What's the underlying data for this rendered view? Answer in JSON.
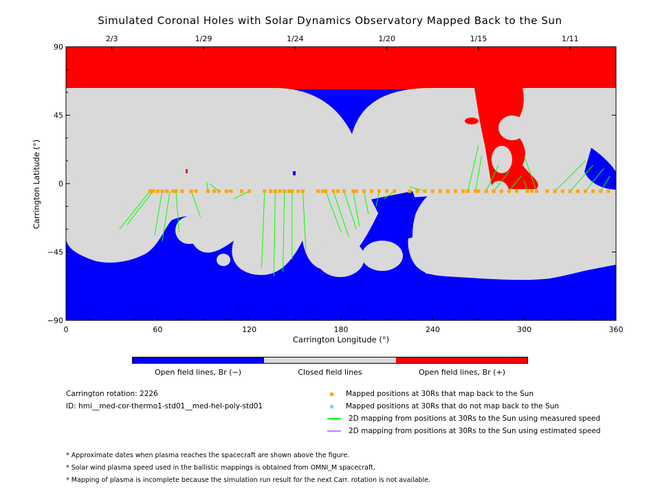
{
  "title": "Simulated Coronal Holes with Solar Dynamics Observatory Mapped Back to the Sun",
  "chart_data": {
    "type": "heatmap",
    "title": "Simulated Coronal Holes with Solar Dynamics Observatory Mapped Back to the Sun",
    "xlabel": "Carrington Longitude (°)",
    "ylabel": "Carrington Latitude (°)",
    "xlim": [
      0,
      360
    ],
    "ylim": [
      -90,
      90
    ],
    "x_ticks": [
      "0",
      "60",
      "120",
      "180",
      "240",
      "300",
      "360"
    ],
    "y_ticks": [
      "90",
      "45",
      "0",
      "−45",
      "−90"
    ],
    "top_axis_ticks": [
      {
        "label": "2/3",
        "lon": 30
      },
      {
        "label": "1/29",
        "lon": 90
      },
      {
        "label": "1/24",
        "lon": 150
      },
      {
        "label": "1/20",
        "lon": 210
      },
      {
        "label": "1/15",
        "lon": 270
      },
      {
        "label": "1/11",
        "lon": 330
      }
    ],
    "colors": {
      "open_negative": "#0000ff",
      "closed": "#d9d9d9",
      "open_positive": "#ff0000",
      "mapped_point": "#ffa500",
      "unmapped_point": "#87cefa",
      "measured_speed_line": "#00ff00",
      "estimated_speed_line": "#c080ff"
    },
    "mapped_positions_lat": -5,
    "mapping_lines": [
      {
        "from_lon": 55,
        "to_lon": 35,
        "to_lat": -30
      },
      {
        "from_lon": 57,
        "to_lon": 40,
        "to_lat": -27
      },
      {
        "from_lon": 63,
        "to_lon": 58,
        "to_lat": -34
      },
      {
        "from_lon": 68,
        "to_lon": 63,
        "to_lat": -38
      },
      {
        "from_lon": 72,
        "to_lon": 74,
        "to_lat": -32
      },
      {
        "from_lon": 82,
        "to_lon": 88,
        "to_lat": -22
      },
      {
        "from_lon": 93,
        "to_lon": 92,
        "to_lat": 1
      },
      {
        "from_lon": 100,
        "to_lon": 94,
        "to_lat": 0
      },
      {
        "from_lon": 108,
        "to_lon": 105,
        "to_lat": -5
      },
      {
        "from_lon": 120,
        "to_lon": 110,
        "to_lat": -10
      },
      {
        "from_lon": 130,
        "to_lon": 128,
        "to_lat": -55
      },
      {
        "from_lon": 137,
        "to_lon": 136,
        "to_lat": -61
      },
      {
        "from_lon": 143,
        "to_lon": 142,
        "to_lat": -58
      },
      {
        "from_lon": 148,
        "to_lon": 148,
        "to_lat": -50
      },
      {
        "from_lon": 155,
        "to_lon": 157,
        "to_lat": -44
      },
      {
        "from_lon": 170,
        "to_lon": 180,
        "to_lat": -32
      },
      {
        "from_lon": 175,
        "to_lon": 185,
        "to_lat": -35
      },
      {
        "from_lon": 182,
        "to_lon": 190,
        "to_lat": -30
      },
      {
        "from_lon": 188,
        "to_lon": 192,
        "to_lat": -28
      },
      {
        "from_lon": 195,
        "to_lon": 198,
        "to_lat": -20
      },
      {
        "from_lon": 205,
        "to_lon": 203,
        "to_lat": -15
      },
      {
        "from_lon": 215,
        "to_lon": 208,
        "to_lat": -10
      },
      {
        "from_lon": 235,
        "to_lon": 225,
        "to_lat": -2
      },
      {
        "from_lon": 263,
        "to_lon": 270,
        "to_lat": 25
      },
      {
        "from_lon": 268,
        "to_lon": 272,
        "to_lat": 18
      },
      {
        "from_lon": 275,
        "to_lon": 283,
        "to_lat": 12
      },
      {
        "from_lon": 280,
        "to_lon": 290,
        "to_lat": 8
      },
      {
        "from_lon": 290,
        "to_lon": 298,
        "to_lat": 5
      },
      {
        "from_lon": 302,
        "to_lon": 300,
        "to_lat": 2
      },
      {
        "from_lon": 308,
        "to_lon": 300,
        "to_lat": 18
      },
      {
        "from_lon": 320,
        "to_lon": 340,
        "to_lat": 15
      },
      {
        "from_lon": 330,
        "to_lon": 345,
        "to_lat": 12
      },
      {
        "from_lon": 340,
        "to_lon": 352,
        "to_lat": 10
      },
      {
        "from_lon": 350,
        "to_lon": 356,
        "to_lat": 5
      }
    ],
    "mapped_positions_lon": [
      55,
      57,
      60,
      63,
      66,
      70,
      72,
      76,
      82,
      85,
      93,
      97,
      100,
      105,
      108,
      115,
      120,
      130,
      134,
      137,
      140,
      143,
      146,
      148,
      152,
      155,
      165,
      168,
      170,
      175,
      178,
      182,
      188,
      190,
      195,
      200,
      205,
      210,
      215,
      225,
      230,
      235,
      240,
      245,
      250,
      255,
      260,
      263,
      268,
      270,
      275,
      280,
      285,
      290,
      295,
      302,
      305,
      308,
      315,
      320,
      325,
      330,
      335,
      340,
      345,
      350,
      355
    ]
  },
  "colorbar": {
    "left_label": "Open field lines, Br (−)",
    "middle_label": "Closed field lines",
    "right_label": "Open field lines, Br (+)"
  },
  "info": {
    "rotation": "Carrington rotation: 2226",
    "id": "ID: hmi__med-cor-thermo1-std01__med-hel-poly-std01"
  },
  "legend": {
    "mapped": "Mapped positions at 30Rs that map back to the Sun",
    "unmapped": "Mapped positions at 30Rs that do not map back to the Sun",
    "measured": "2D mapping from positions at 30Rs to the Sun using measured speed",
    "estimated": "2D mapping from positions at 30Rs to the Sun using estimated speed"
  },
  "notes": [
    "* Approximate dates when plasma reaches the spacecraft are shown above the figure.",
    "* Solar wind plasma speed used in the ballistic mappings is obtained from OMNI_M spacecraft.",
    "* Mapping of plasma is incomplete because the simulation run result for the next Carr. rotation is not available."
  ]
}
